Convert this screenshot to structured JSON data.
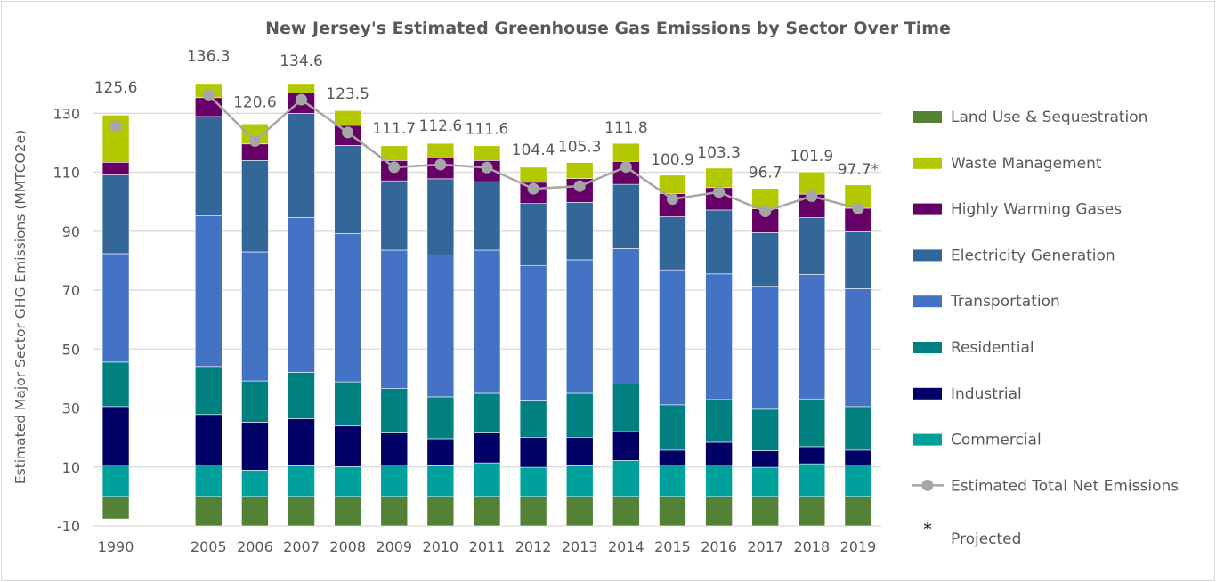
{
  "chart_data": {
    "type": "bar",
    "stacked": true,
    "title": "New Jersey's Estimated Greenhouse Gas Emissions by Sector Over Time",
    "xlabel": "",
    "ylabel": "Estimated Major Sector GHG Emissions (MMTCO2e)",
    "ylim": [
      -10,
      140
    ],
    "yticks": [
      -10,
      10,
      30,
      50,
      70,
      90,
      110,
      130
    ],
    "grid": true,
    "legend_position": "right",
    "categories": [
      "1990",
      "2005",
      "2006",
      "2007",
      "2008",
      "2009",
      "2010",
      "2011",
      "2012",
      "2013",
      "2014",
      "2015",
      "2016",
      "2017",
      "2018",
      "2019"
    ],
    "series": [
      {
        "name": "Land Use & Sequestration",
        "color": "#538135",
        "values": [
          -7.6,
          -10,
          -10,
          -10,
          -10,
          -10,
          -10,
          -10,
          -10,
          -10,
          -10,
          -10,
          -10,
          -10,
          -10,
          -10
        ]
      },
      {
        "name": "Commercial",
        "color": "#00a19c",
        "values": [
          10.7,
          10.7,
          8.9,
          10.4,
          10.1,
          10.7,
          10.4,
          11.4,
          9.9,
          10.4,
          12.2,
          10.7,
          10.7,
          9.9,
          11.1,
          10.7
        ]
      },
      {
        "name": "Industrial",
        "color": "#000066",
        "values": [
          19.8,
          17.1,
          16.3,
          16.0,
          13.9,
          10.8,
          9.2,
          10.1,
          10.2,
          9.7,
          9.8,
          5.0,
          7.7,
          5.6,
          5.8,
          5.0
        ]
      },
      {
        "name": "Residential",
        "color": "#008080",
        "values": [
          15.1,
          16.3,
          14.0,
          15.7,
          14.9,
          15.1,
          14.2,
          13.5,
          12.3,
          14.9,
          16.1,
          15.4,
          14.5,
          14.1,
          16.2,
          14.8
        ]
      },
      {
        "name": "Transportation",
        "color": "#4472c4",
        "values": [
          36.8,
          51.1,
          43.8,
          52.5,
          50.3,
          47.0,
          48.1,
          48.6,
          46.0,
          45.3,
          46.0,
          45.8,
          42.6,
          41.7,
          42.2,
          40.0
        ]
      },
      {
        "name": "Electricity Generation",
        "color": "#336699",
        "values": [
          26.7,
          33.7,
          31.0,
          35.4,
          29.9,
          23.5,
          25.9,
          23.2,
          21.0,
          19.5,
          21.8,
          18.0,
          21.7,
          18.2,
          19.3,
          19.3
        ]
      },
      {
        "name": "Highly Warming Gases",
        "color": "#660066",
        "values": [
          4.3,
          6.4,
          5.6,
          6.9,
          6.8,
          6.9,
          7.0,
          7.2,
          7.2,
          8.1,
          7.8,
          7.9,
          7.6,
          8.1,
          8.0,
          8.0
        ]
      },
      {
        "name": "Waste Management",
        "color": "#b4c800",
        "values": [
          16.0,
          4.8,
          6.8,
          3.2,
          5.0,
          5.0,
          5.0,
          5.0,
          5.1,
          5.4,
          6.1,
          6.2,
          6.6,
          6.9,
          7.5,
          7.9
        ]
      }
    ],
    "line_series": {
      "name": "Estimated Total Net Emissions",
      "color": "#a6a6a6",
      "values": [
        125.6,
        136.3,
        120.6,
        134.6,
        123.5,
        111.7,
        112.6,
        111.6,
        104.4,
        105.3,
        111.8,
        100.9,
        103.3,
        96.7,
        101.9,
        97.7
      ],
      "labels": [
        "125.6",
        "136.3",
        "120.6",
        "134.6",
        "123.5",
        "111.7",
        "112.6",
        "111.6",
        "104.4",
        "105.3",
        "111.8",
        "100.9",
        "103.3",
        "96.7",
        "101.9",
        "97.7*"
      ]
    },
    "legend": [
      {
        "label": "Land Use & Sequestration",
        "type": "box",
        "color": "#538135"
      },
      {
        "label": "Waste Management",
        "type": "box",
        "color": "#b4c800"
      },
      {
        "label": "Highly Warming Gases",
        "type": "box",
        "color": "#660066"
      },
      {
        "label": "Electricity Generation",
        "type": "box",
        "color": "#336699"
      },
      {
        "label": "Transportation",
        "type": "box",
        "color": "#4472c4"
      },
      {
        "label": "Residential",
        "type": "box",
        "color": "#008080"
      },
      {
        "label": "Industrial",
        "type": "box",
        "color": "#000066"
      },
      {
        "label": "Commercial",
        "type": "box",
        "color": "#00a19c"
      },
      {
        "label": "Estimated Total Net Emissions",
        "type": "line",
        "color": "#a6a6a6"
      },
      {
        "label": "Projected",
        "type": "star",
        "symbol": "*"
      }
    ]
  }
}
